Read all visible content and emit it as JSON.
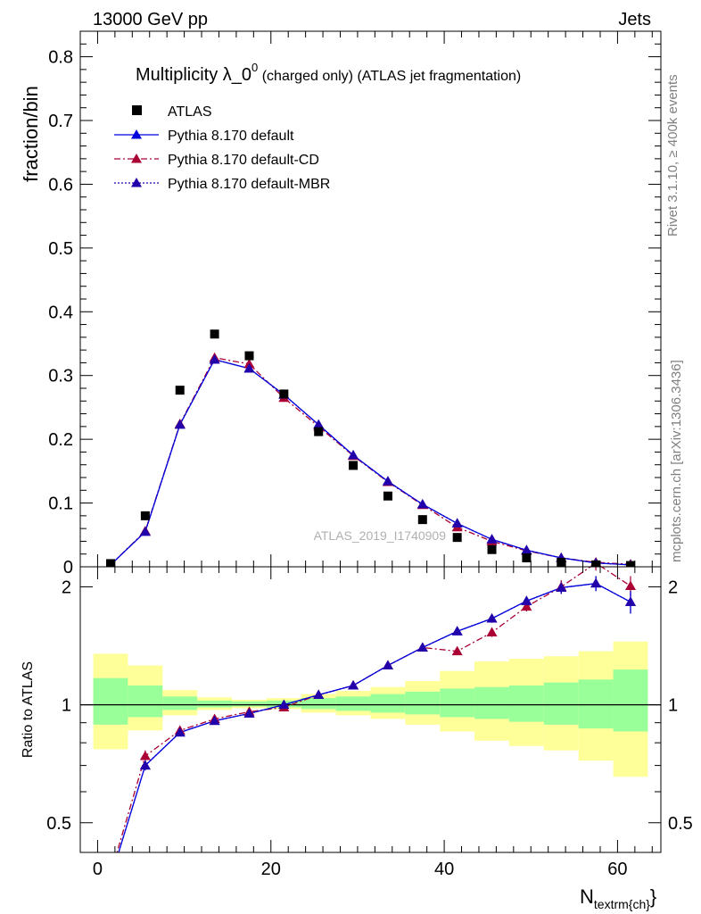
{
  "header": {
    "left": "13000 GeV pp",
    "right": "Jets"
  },
  "side_text": {
    "top": "Rivet 3.1.10, ≥ 400k events",
    "bottom": "mcplots.cern.ch [arXiv:1306.3436]"
  },
  "colors": {
    "atlas": "#000000",
    "default": "#0000dd",
    "default_cd": "#aa0033",
    "default_mbr": "#2200aa",
    "band_inner": "#99ff99",
    "band_outer": "#ffff99"
  },
  "chart_data": [
    {
      "type": "scatter",
      "title": "Multiplicity λ_0⁰ (charged only) (ATLAS jet fragmentation)",
      "title_main": "Multiplicity λ_0",
      "title_sup": "0",
      "title_rest": " (charged only) (ATLAS jet fragmentation)",
      "ylabel": "fraction/bin",
      "watermark": "ATLAS_2019_I1740909",
      "xlim": [
        -2,
        65
      ],
      "ylim": [
        0,
        0.84
      ],
      "yticks": [
        0,
        0.1,
        0.2,
        0.3,
        0.4,
        0.5,
        0.6,
        0.7,
        0.8
      ],
      "ytick_labels": [
        "0",
        "0.1",
        "0.2",
        "0.3",
        "0.4",
        "0.5",
        "0.6",
        "0.7",
        "0.8"
      ],
      "legend_position": "top-left",
      "x": [
        1.5,
        5.5,
        9.5,
        13.5,
        17.5,
        21.5,
        25.5,
        29.5,
        33.5,
        37.5,
        41.5,
        45.5,
        49.5,
        53.5,
        57.5,
        61.5
      ],
      "series": [
        {
          "name": "ATLAS",
          "key": "atlas",
          "marker": "square",
          "values": [
            0.005,
            0.08,
            0.277,
            0.365,
            0.331,
            0.271,
            0.212,
            0.159,
            0.111,
            0.074,
            0.046,
            0.027,
            0.014,
            0.007,
            0.003,
            0.002
          ]
        },
        {
          "name": "Pythia 8.170 default",
          "key": "default",
          "marker": "triangle",
          "dash": "",
          "values": [
            0.003,
            0.055,
            0.223,
            0.325,
            0.311,
            0.27,
            0.223,
            0.175,
            0.134,
            0.098,
            0.068,
            0.043,
            0.026,
            0.014,
            0.006,
            0.003
          ]
        },
        {
          "name": "Pythia 8.170 default-CD",
          "key": "default_cd",
          "marker": "triangle",
          "dash": "7,3,2,3",
          "values": [
            0.003,
            0.056,
            0.224,
            0.328,
            0.318,
            0.265,
            0.22,
            0.174,
            0.133,
            0.097,
            0.062,
            0.04,
            0.025,
            0.014,
            0.007,
            0.004
          ]
        },
        {
          "name": "Pythia 8.170 default-MBR",
          "key": "default_mbr",
          "marker": "triangle",
          "dash": "2,2",
          "values": [
            0.003,
            0.055,
            0.223,
            0.325,
            0.311,
            0.27,
            0.223,
            0.175,
            0.134,
            0.098,
            0.068,
            0.043,
            0.026,
            0.014,
            0.006,
            0.003
          ]
        }
      ]
    },
    {
      "type": "line",
      "ylabel": "Ratio to ATLAS",
      "xlabel": "N",
      "xlabel_sub": "textrm{ch}",
      "xlabel_close": "}",
      "xlim": [
        -2,
        65
      ],
      "ylim": [
        0.42,
        2.25
      ],
      "yscale": "log",
      "yticks_major": [
        0.5,
        1,
        2
      ],
      "ytick_labels": [
        "0.5",
        "1",
        "2"
      ],
      "xticks": [
        0,
        20,
        40,
        60
      ],
      "xtick_labels": [
        "0",
        "20",
        "40",
        "60"
      ],
      "bin_edges": [
        -0.5,
        3.5,
        7.5,
        11.5,
        15.5,
        19.5,
        23.5,
        27.5,
        31.5,
        35.5,
        39.5,
        43.5,
        47.5,
        51.5,
        55.5,
        59.5,
        63.5
      ],
      "band_inner": {
        "lo": [
          0.89,
          0.93,
          0.97,
          0.985,
          0.99,
          0.985,
          0.975,
          0.965,
          0.955,
          0.945,
          0.93,
          0.92,
          0.905,
          0.89,
          0.87,
          0.855
        ],
        "hi": [
          1.17,
          1.12,
          1.05,
          1.025,
          1.02,
          1.025,
          1.04,
          1.05,
          1.065,
          1.08,
          1.1,
          1.11,
          1.12,
          1.14,
          1.16,
          1.23
        ]
      },
      "band_outer": {
        "lo": [
          0.77,
          0.86,
          0.94,
          0.97,
          0.98,
          0.975,
          0.955,
          0.94,
          0.92,
          0.89,
          0.855,
          0.81,
          0.785,
          0.765,
          0.72,
          0.655
        ],
        "hi": [
          1.35,
          1.26,
          1.09,
          1.045,
          1.03,
          1.04,
          1.065,
          1.085,
          1.11,
          1.15,
          1.22,
          1.29,
          1.31,
          1.33,
          1.37,
          1.45
        ]
      },
      "x": [
        1.5,
        5.5,
        9.5,
        13.5,
        17.5,
        21.5,
        25.5,
        29.5,
        33.5,
        37.5,
        41.5,
        45.5,
        49.5,
        53.5,
        57.5,
        61.5
      ],
      "series": [
        {
          "name": "Pythia 8.170 default",
          "key": "default",
          "dash": "",
          "values": [
            0.36,
            0.7,
            0.85,
            0.91,
            0.95,
            1.0,
            1.06,
            1.12,
            1.26,
            1.4,
            1.54,
            1.66,
            1.84,
            1.99,
            2.04,
            1.83
          ],
          "err": [
            0,
            0.02,
            0.01,
            0.008,
            0.008,
            0.008,
            0.008,
            0.01,
            0.012,
            0.015,
            0.025,
            0.04,
            0.05,
            0.07,
            0.09,
            0.12
          ]
        },
        {
          "name": "Pythia 8.170 default-CD",
          "key": "default_cd",
          "dash": "7,3,2,3",
          "values": [
            0.37,
            0.74,
            0.86,
            0.92,
            0.96,
            0.985,
            1.06,
            1.12,
            1.26,
            1.4,
            1.37,
            1.53,
            1.78,
            2.0,
            2.3,
            2.01
          ],
          "err": [
            0,
            0.025,
            0.012,
            0.008,
            0.008,
            0.008,
            0.008,
            0.01,
            0.012,
            0.02,
            0.03,
            0.04,
            0.05,
            0.08,
            0.1,
            0.12
          ]
        },
        {
          "name": "Pythia 8.170 default-MBR",
          "key": "default_mbr",
          "dash": "2,2",
          "values": [
            0.36,
            0.7,
            0.85,
            0.91,
            0.95,
            1.0,
            1.06,
            1.12,
            1.26,
            1.4,
            1.54,
            1.66,
            1.84,
            1.99,
            2.04,
            1.83
          ],
          "err": [
            0,
            0.02,
            0.01,
            0.008,
            0.008,
            0.008,
            0.008,
            0.01,
            0.012,
            0.015,
            0.025,
            0.04,
            0.05,
            0.07,
            0.09,
            0.12
          ]
        }
      ]
    }
  ]
}
